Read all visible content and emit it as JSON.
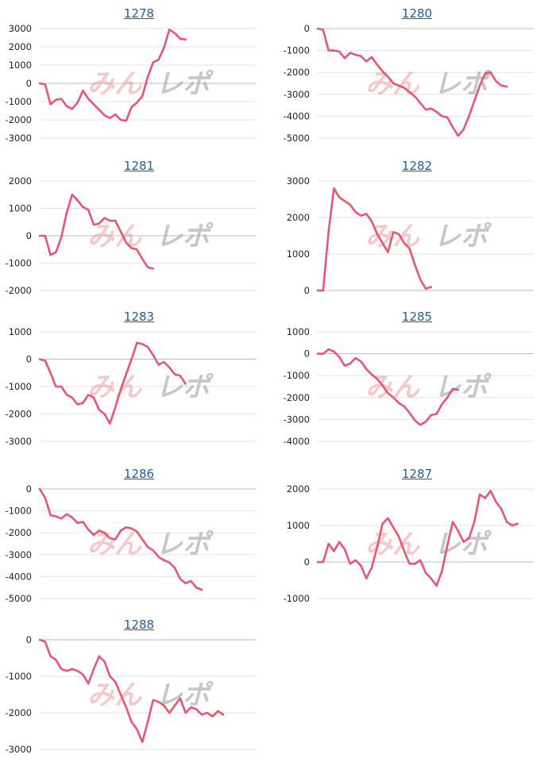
{
  "watermark": {
    "red": "みん",
    "gray": "レポ"
  },
  "colors": {
    "line": "#e9566e",
    "title": "#1a5fa5",
    "grid": "#e3e3e3"
  },
  "chart_data": [
    {
      "type": "line",
      "title": "1278",
      "ylim": [
        -3000,
        3000
      ],
      "yticks": [
        3000,
        2000,
        1000,
        0,
        -1000,
        -2000,
        -3000
      ],
      "values": [
        0,
        -50,
        -1150,
        -900,
        -850,
        -1250,
        -1400,
        -1050,
        -400,
        -850,
        -1150,
        -1450,
        -1750,
        -1900,
        -1700,
        -2000,
        -2050,
        -1300,
        -1050,
        -700,
        350,
        1150,
        1300,
        1950,
        2950,
        2750,
        2450,
        2400
      ]
    },
    {
      "type": "line",
      "title": "1280",
      "ylim": [
        -5000,
        0
      ],
      "yticks": [
        0,
        -1000,
        -2000,
        -3000,
        -4000,
        -5000
      ],
      "values": [
        0,
        -50,
        -1000,
        -1000,
        -1050,
        -1350,
        -1100,
        -1200,
        -1250,
        -1500,
        -1300,
        -1650,
        -1950,
        -2200,
        -2500,
        -2600,
        -2700,
        -2900,
        -3100,
        -3400,
        -3700,
        -3650,
        -3800,
        -4000,
        -4050,
        -4500,
        -4900,
        -4600,
        -4000,
        -3300,
        -2600,
        -2050,
        -2000,
        -2400,
        -2600,
        -2650
      ]
    },
    {
      "type": "line",
      "title": "1281",
      "ylim": [
        -2000,
        2000
      ],
      "yticks": [
        2000,
        1000,
        0,
        -1000,
        -2000
      ],
      "values": [
        0,
        0,
        -700,
        -600,
        -50,
        850,
        1500,
        1300,
        1050,
        950,
        400,
        450,
        650,
        550,
        550,
        150,
        -250,
        -450,
        -500,
        -850,
        -1150,
        -1200
      ]
    },
    {
      "type": "line",
      "title": "1282",
      "ylim": [
        0,
        3000
      ],
      "yticks": [
        3000,
        2000,
        1000,
        0
      ],
      "values": [
        0,
        0,
        1600,
        2800,
        2550,
        2450,
        2350,
        2150,
        2050,
        2100,
        1900,
        1550,
        1300,
        1050,
        1600,
        1550,
        1300,
        1150,
        700,
        300,
        50,
        100
      ]
    },
    {
      "type": "line",
      "title": "1283",
      "ylim": [
        -3000,
        1000
      ],
      "yticks": [
        1000,
        0,
        -1000,
        -2000,
        -3000
      ],
      "values": [
        0,
        -50,
        -500,
        -1000,
        -1000,
        -1300,
        -1400,
        -1650,
        -1600,
        -1300,
        -1400,
        -1850,
        -2000,
        -2350,
        -1750,
        -1100,
        -550,
        0,
        600,
        550,
        450,
        150,
        -200,
        -100,
        -300,
        -550,
        -600,
        -900
      ]
    },
    {
      "type": "line",
      "title": "1285",
      "ylim": [
        -4000,
        1000
      ],
      "yticks": [
        1000,
        0,
        -1000,
        -2000,
        -3000,
        -4000
      ],
      "values": [
        0,
        0,
        200,
        100,
        -150,
        -550,
        -450,
        -200,
        -350,
        -700,
        -950,
        -1150,
        -1450,
        -1800,
        -2000,
        -2250,
        -2400,
        -2700,
        -3050,
        -3250,
        -3100,
        -2800,
        -2750,
        -2300,
        -2000,
        -1600,
        -1650
      ]
    },
    {
      "type": "line",
      "title": "1286",
      "ylim": [
        -5000,
        0
      ],
      "yticks": [
        0,
        -1000,
        -2000,
        -3000,
        -4000,
        -5000
      ],
      "values": [
        0,
        -400,
        -1200,
        -1250,
        -1350,
        -1150,
        -1300,
        -1550,
        -1500,
        -1850,
        -2100,
        -1900,
        -2000,
        -2250,
        -2300,
        -1900,
        -1750,
        -1800,
        -1950,
        -2300,
        -2650,
        -2800,
        -3100,
        -3250,
        -3350,
        -3600,
        -4100,
        -4300,
        -4200,
        -4500,
        -4600
      ]
    },
    {
      "type": "line",
      "title": "1287",
      "ylim": [
        -1000,
        2000
      ],
      "yticks": [
        2000,
        1000,
        0,
        -1000
      ],
      "values": [
        0,
        0,
        500,
        300,
        550,
        350,
        -50,
        50,
        -100,
        -450,
        -150,
        400,
        1050,
        1200,
        950,
        700,
        300,
        -50,
        -50,
        50,
        -300,
        -450,
        -650,
        -250,
        450,
        1100,
        850,
        550,
        650,
        1100,
        1850,
        1750,
        1950,
        1650,
        1450,
        1100,
        1000,
        1050
      ]
    },
    {
      "type": "line",
      "title": "1288",
      "ylim": [
        -3000,
        0
      ],
      "yticks": [
        0,
        -1000,
        -2000,
        -3000
      ],
      "values": [
        0,
        -50,
        -450,
        -550,
        -800,
        -850,
        -800,
        -850,
        -950,
        -1200,
        -800,
        -450,
        -600,
        -1000,
        -1150,
        -1500,
        -1850,
        -2250,
        -2450,
        -2800,
        -2250,
        -1650,
        -1700,
        -1800,
        -2000,
        -1800,
        -1600,
        -2000,
        -1850,
        -1900,
        -2050,
        -2000,
        -2100,
        -1950,
        -2050
      ]
    }
  ]
}
